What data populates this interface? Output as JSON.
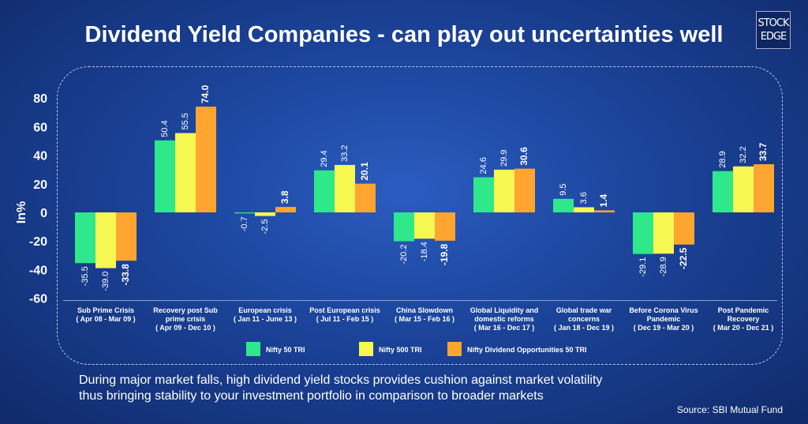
{
  "chart_data": {
    "type": "bar",
    "title": "Dividend Yield Companies - can play out uncertainties well",
    "ylabel": "In%",
    "ylim": [
      -60,
      80
    ],
    "yticks": [
      80,
      60,
      40,
      20,
      0,
      -20,
      -40,
      -60
    ],
    "grid": false,
    "legend_placement": "bottom",
    "categories": [
      [
        "Sub Prime Crisis",
        "( Apr 08 - Mar 09 )"
      ],
      [
        "Recovery post Sub",
        "prime crisis",
        "( Apr 09 - Dec 10 )"
      ],
      [
        "European crisis",
        "( Jan 11 - June 13 )"
      ],
      [
        "Post European crisis",
        "( Jul 11 - Feb 15 )"
      ],
      [
        "China Slowdown",
        "( Mar 15 - Feb 16 )"
      ],
      [
        "Global Liquidity and",
        "domestic reforms",
        "( Mar 16 - Dec 17 )"
      ],
      [
        "Global trade war",
        "concerns",
        "( Jan 18 - Dec 19 )"
      ],
      [
        "Before Corona Virus",
        "Pandemic",
        "( Dec 19 - Mar 20 )"
      ],
      [
        "Post Pandemic",
        "Recovery",
        "( Mar 20 - Dec 21 )"
      ]
    ],
    "series": [
      {
        "name": "Nifty 50 TRI",
        "color": "#2ee88a",
        "values": [
          -35.5,
          50.4,
          -0.7,
          29.4,
          -20.2,
          24.6,
          9.5,
          -29.1,
          28.9
        ]
      },
      {
        "name": "Nifty 500 TRI",
        "color": "#f7f752",
        "values": [
          -39.0,
          55.5,
          -2.5,
          33.2,
          -18.4,
          29.9,
          3.6,
          -28.9,
          32.2
        ]
      },
      {
        "name": "Nifty  Dividend Opportunities 50 TRI",
        "color": "#ffa530",
        "values": [
          -33.8,
          74.0,
          3.8,
          20.1,
          -19.8,
          30.6,
          1.4,
          -22.5,
          33.7
        ],
        "bold_labels": true
      }
    ]
  },
  "logo": {
    "line1": "STOCK",
    "line2": "EDGE"
  },
  "footer": {
    "line1": "During major market falls, high dividend yield stocks provides cushion against market volatility",
    "line2": "thus bringing stability to your investment portfolio in comparison to broader markets"
  },
  "source": "Source: SBI Mutual Fund"
}
